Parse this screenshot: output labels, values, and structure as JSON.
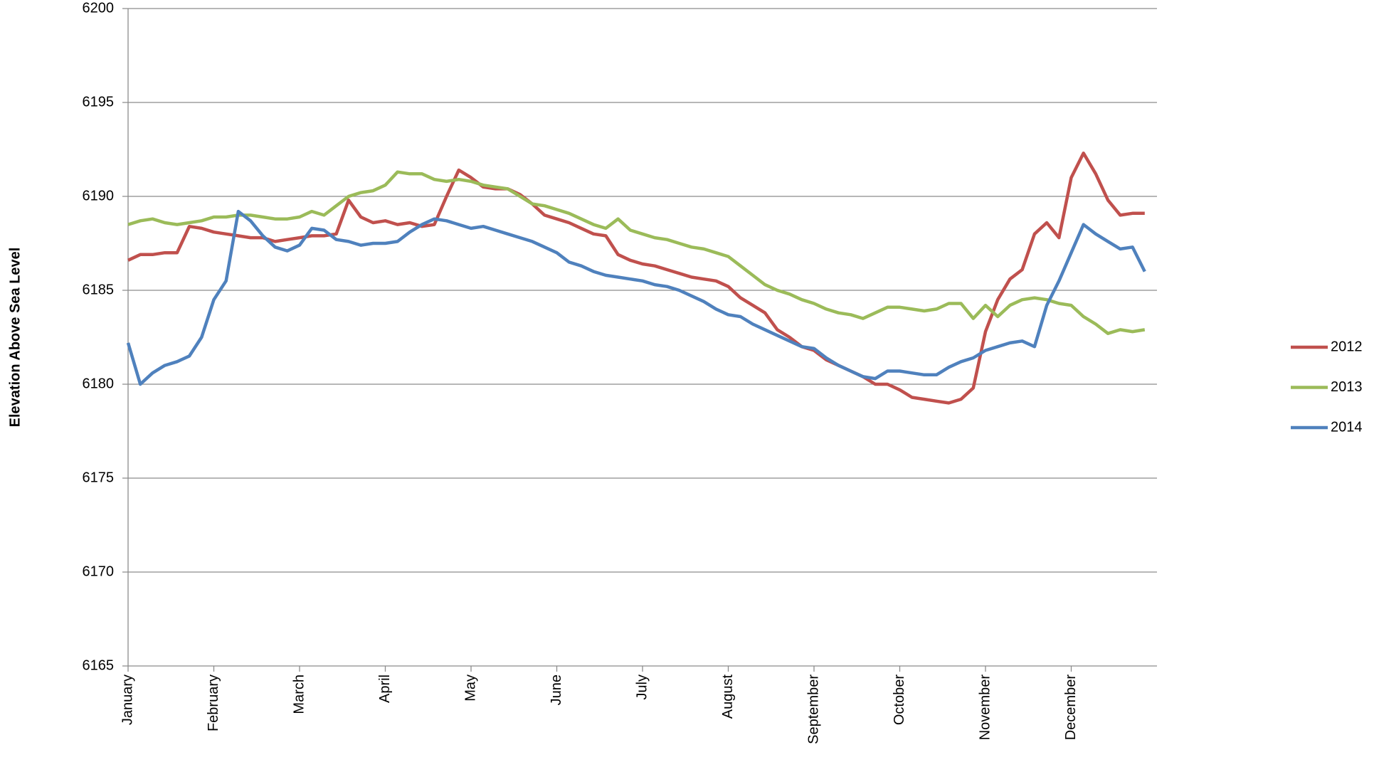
{
  "chart_data": {
    "type": "line",
    "ylabel": "Elevation Above Sea Level",
    "categories": [
      "January",
      null,
      null,
      null,
      null,
      null,
      null,
      "February",
      null,
      null,
      null,
      null,
      null,
      null,
      "March",
      null,
      null,
      null,
      null,
      null,
      null,
      "April",
      null,
      null,
      null,
      null,
      null,
      null,
      "May",
      null,
      null,
      null,
      null,
      null,
      null,
      "June",
      null,
      null,
      null,
      null,
      null,
      null,
      "July",
      null,
      null,
      null,
      null,
      null,
      null,
      "August",
      null,
      null,
      null,
      null,
      null,
      null,
      "September",
      null,
      null,
      null,
      null,
      null,
      null,
      "October",
      null,
      null,
      null,
      null,
      null,
      null,
      "November",
      null,
      null,
      null,
      null,
      null,
      null,
      "December",
      null,
      null,
      null,
      null,
      null,
      null
    ],
    "series": [
      {
        "name": "2012",
        "color": "#c0504d",
        "values": [
          6186.6,
          6186.9,
          6186.9,
          6187.0,
          6187.0,
          6188.4,
          6188.3,
          6188.1,
          6188.0,
          6187.9,
          6187.8,
          6187.8,
          6187.6,
          6187.7,
          6187.8,
          6187.9,
          6187.9,
          6188.0,
          6189.8,
          6188.9,
          6188.6,
          6188.7,
          6188.5,
          6188.6,
          6188.4,
          6188.5,
          6190.0,
          6191.4,
          6191.0,
          6190.5,
          6190.4,
          6190.4,
          6190.1,
          6189.6,
          6189.0,
          6188.8,
          6188.6,
          6188.3,
          6188.0,
          6187.9,
          6186.9,
          6186.6,
          6186.4,
          6186.3,
          6186.1,
          6185.9,
          6185.7,
          6185.6,
          6185.5,
          6185.2,
          6184.6,
          6184.2,
          6183.8,
          6182.9,
          6182.5,
          6182.0,
          6181.8,
          6181.3,
          6181.0,
          6180.7,
          6180.4,
          6180.0,
          6180.0,
          6179.7,
          6179.3,
          6179.2,
          6179.1,
          6179.0,
          6179.2,
          6179.8,
          6182.8,
          6184.5,
          6185.6,
          6186.1,
          6188.0,
          6188.6,
          6187.8,
          6191.0,
          6192.3,
          6191.2,
          6189.8,
          6189.0,
          6189.1,
          6189.1
        ]
      },
      {
        "name": "2013",
        "color": "#9bbb59",
        "values": [
          6188.5,
          6188.7,
          6188.8,
          6188.6,
          6188.5,
          6188.6,
          6188.7,
          6188.9,
          6188.9,
          6189.0,
          6189.0,
          6188.9,
          6188.8,
          6188.8,
          6188.9,
          6189.2,
          6189.0,
          6189.5,
          6190.0,
          6190.2,
          6190.3,
          6190.6,
          6191.3,
          6191.2,
          6191.2,
          6190.9,
          6190.8,
          6190.9,
          6190.8,
          6190.6,
          6190.5,
          6190.4,
          6190.0,
          6189.6,
          6189.5,
          6189.3,
          6189.1,
          6188.8,
          6188.5,
          6188.3,
          6188.8,
          6188.2,
          6188.0,
          6187.8,
          6187.7,
          6187.5,
          6187.3,
          6187.2,
          6187.0,
          6186.8,
          6186.3,
          6185.8,
          6185.3,
          6185.0,
          6184.8,
          6184.5,
          6184.3,
          6184.0,
          6183.8,
          6183.7,
          6183.5,
          6183.8,
          6184.1,
          6184.1,
          6184.0,
          6183.9,
          6184.0,
          6184.3,
          6184.3,
          6183.5,
          6184.2,
          6183.6,
          6184.2,
          6184.5,
          6184.6,
          6184.5,
          6184.3,
          6184.2,
          6183.6,
          6183.2,
          6182.7,
          6182.9,
          6182.8,
          6182.9
        ]
      },
      {
        "name": "2014",
        "color": "#4f81bd",
        "values": [
          6182.2,
          6180.0,
          6180.6,
          6181.0,
          6181.2,
          6181.5,
          6182.5,
          6184.5,
          6185.5,
          6189.2,
          6188.7,
          6187.9,
          6187.3,
          6187.1,
          6187.4,
          6188.3,
          6188.2,
          6187.7,
          6187.6,
          6187.4,
          6187.5,
          6187.5,
          6187.6,
          6188.1,
          6188.5,
          6188.8,
          6188.7,
          6188.5,
          6188.3,
          6188.4,
          6188.2,
          6188.0,
          6187.8,
          6187.6,
          6187.3,
          6187.0,
          6186.5,
          6186.3,
          6186.0,
          6185.8,
          6185.7,
          6185.6,
          6185.5,
          6185.3,
          6185.2,
          6185.0,
          6184.7,
          6184.4,
          6184.0,
          6183.7,
          6183.6,
          6183.2,
          6182.9,
          6182.6,
          6182.3,
          6182.0,
          6181.9,
          6181.4,
          6181.0,
          6180.7,
          6180.4,
          6180.3,
          6180.7,
          6180.7,
          6180.6,
          6180.5,
          6180.5,
          6180.9,
          6181.2,
          6181.4,
          6181.8,
          6182.0,
          6182.2,
          6182.3,
          6182.0,
          6184.2,
          6185.5,
          6187.0,
          6188.5,
          6188.0,
          6187.6,
          6187.2,
          6187.3,
          6186.0
        ]
      }
    ],
    "ylim": [
      6165,
      6200
    ],
    "yticks": [
      6165,
      6170,
      6175,
      6180,
      6185,
      6190,
      6195,
      6200
    ],
    "grid": true,
    "legend": "right"
  }
}
